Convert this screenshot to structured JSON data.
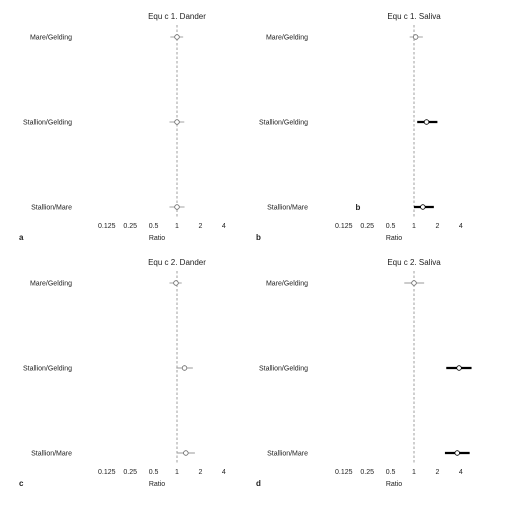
{
  "chart_data": [
    {
      "type": "forest",
      "panel_letter": "a",
      "title": "Equ c 1. Dander",
      "xlabel": "Ratio",
      "xscale": "log2",
      "xlim": [
        0.0625,
        6
      ],
      "xticks": [
        0.125,
        0.25,
        0.5,
        1,
        2,
        4
      ],
      "xtick_labels": [
        "0.125",
        "0.25",
        "0.5",
        "1",
        "2",
        "4"
      ],
      "reference_line": 1,
      "categories": [
        "Mare/Gelding",
        "Stallion/Gelding",
        "Stallion/Mare"
      ],
      "series": [
        {
          "estimate": [
            1.0,
            1.0,
            1.0
          ],
          "lower": [
            0.82,
            0.8,
            0.8
          ],
          "upper": [
            1.2,
            1.24,
            1.25
          ],
          "bold": [
            false,
            false,
            false
          ]
        }
      ]
    },
    {
      "type": "forest",
      "panel_letter": "b",
      "title": "Equ c 1. Saliva",
      "xlabel": "Ratio",
      "xscale": "log2",
      "xlim": [
        0.0625,
        6
      ],
      "xticks": [
        0.125,
        0.25,
        0.5,
        1,
        2,
        4
      ],
      "xtick_labels": [
        "0.125",
        "0.25",
        "0.5",
        "1",
        "2",
        "4"
      ],
      "reference_line": 1,
      "categories": [
        "Mare/Gelding",
        "Stallion/Gelding",
        "Stallion/Mare"
      ],
      "series": [
        {
          "estimate": [
            1.05,
            1.45,
            1.3
          ],
          "lower": [
            0.88,
            1.1,
            1.0
          ],
          "upper": [
            1.3,
            2.0,
            1.8
          ],
          "bold": [
            false,
            true,
            true
          ]
        }
      ],
      "inline_label": "b"
    },
    {
      "type": "forest",
      "panel_letter": "c",
      "title": "Equ c 2. Dander",
      "xlabel": "Ratio",
      "xscale": "log2",
      "xlim": [
        0.0625,
        6
      ],
      "xticks": [
        0.125,
        0.25,
        0.5,
        1,
        2,
        4
      ],
      "xtick_labels": [
        "0.125",
        "0.25",
        "0.5",
        "1",
        "2",
        "4"
      ],
      "reference_line": 1,
      "categories": [
        "Mare/Gelding",
        "Stallion/Gelding",
        "Stallion/Mare"
      ],
      "series": [
        {
          "estimate": [
            0.97,
            1.25,
            1.3
          ],
          "lower": [
            0.8,
            0.98,
            1.0
          ],
          "upper": [
            1.15,
            1.6,
            1.7
          ],
          "bold": [
            false,
            false,
            false
          ]
        }
      ]
    },
    {
      "type": "forest",
      "panel_letter": "d",
      "title": "Equ c 2. Saliva",
      "xlabel": "Ratio",
      "xscale": "log2",
      "xlim": [
        0.0625,
        6
      ],
      "xticks": [
        0.125,
        0.25,
        0.5,
        1,
        2,
        4
      ],
      "xtick_labels": [
        "0.125",
        "0.25",
        "0.5",
        "1",
        "2",
        "4"
      ],
      "reference_line": 1,
      "categories": [
        "Mare/Gelding",
        "Stallion/Gelding",
        "Stallion/Mare"
      ],
      "series": [
        {
          "estimate": [
            1.0,
            3.8,
            3.6
          ],
          "lower": [
            0.75,
            2.6,
            2.5
          ],
          "upper": [
            1.35,
            5.5,
            5.2
          ],
          "bold": [
            false,
            true,
            true
          ]
        }
      ]
    }
  ]
}
